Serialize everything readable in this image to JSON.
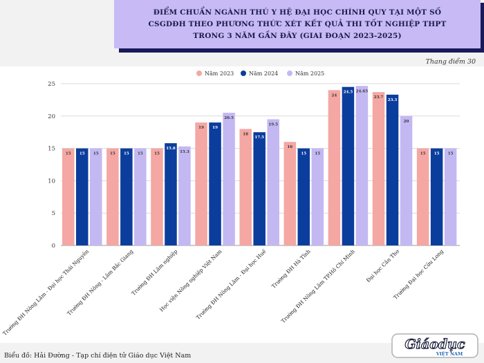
{
  "title": {
    "line1": "ĐIỂM CHUẨN NGÀNH THÚ Y HỆ ĐẠI HỌC CHÍNH QUY TẠI MỘT SỐ",
    "line2": "CSGDĐH THEO PHƯƠNG THỨC XÉT KẾT QUẢ THI TỐT NGHIỆP THPT",
    "line3": "TRONG 3 NĂM GẦN ĐÂY (GIAI ĐOẠN 2023-2025)"
  },
  "scale_note": "Thang điểm 30",
  "footer": "Biểu đồ: Hải Đường - Tạp chí điện tử Giáo dục Việt Nam",
  "logo": {
    "main": "Giáodục",
    "sub": "VIỆT NAM"
  },
  "colors": {
    "y2023": "#f4a7a3",
    "y2024": "#0b3d9c",
    "y2025": "#c3b8f2",
    "title_bg": "#c7baf5"
  },
  "chart_data": {
    "type": "bar",
    "title": "ĐIỂM CHUẨN NGÀNH THÚ Y HỆ ĐẠI HỌC CHÍNH QUY TẠI MỘT SỐ CSGDĐH THEO PHƯƠNG THỨC XÉT KẾT QUẢ THI TỐT NGHIỆP THPT TRONG 3 NĂM GẦN ĐÂY (GIAI ĐOẠN 2023-2025)",
    "xlabel": "",
    "ylabel": "",
    "ylim": [
      0,
      25
    ],
    "yticks": [
      0,
      5,
      10,
      15,
      20,
      25
    ],
    "grid": true,
    "legend_position": "top-center",
    "categories": [
      "Trường ĐH Nông Lâm - Đại học Thái Nguyên",
      "Trường ĐH Nông - Lâm Bắc Giang",
      "Trường ĐH Lâm nghiệp",
      "Học viện Nông nghiệp Việt Nam",
      "Trường ĐH Nông Lâm - Đại học Huế",
      "Trường ĐH Hà Tĩnh",
      "Trường ĐH Nông Lâm TP.Hồ Chí Minh",
      "Đại học Cần Thơ",
      "Trường Đại học Cửu Long"
    ],
    "series": [
      {
        "name": "Năm 2023",
        "values": [
          15,
          15,
          15,
          19,
          18,
          16,
          24,
          23.7,
          15
        ],
        "labels": [
          "15",
          "15",
          "15",
          "19",
          "18",
          "16",
          "24",
          "23.7",
          "15"
        ]
      },
      {
        "name": "Năm 2024",
        "values": [
          15,
          15,
          15.8,
          19,
          17.5,
          15,
          24.5,
          23.3,
          15
        ],
        "labels": [
          "15",
          "15",
          "15.8",
          "19",
          "17.5",
          "15",
          "24.5",
          "23.3",
          "15"
        ]
      },
      {
        "name": "Năm 2025",
        "values": [
          15,
          15,
          15.3,
          20.5,
          19.5,
          15,
          24.65,
          20,
          15
        ],
        "labels": [
          "15",
          "15",
          "15.3",
          "20.5",
          "19.5",
          "15",
          "24.65",
          "20",
          "15"
        ]
      }
    ]
  }
}
